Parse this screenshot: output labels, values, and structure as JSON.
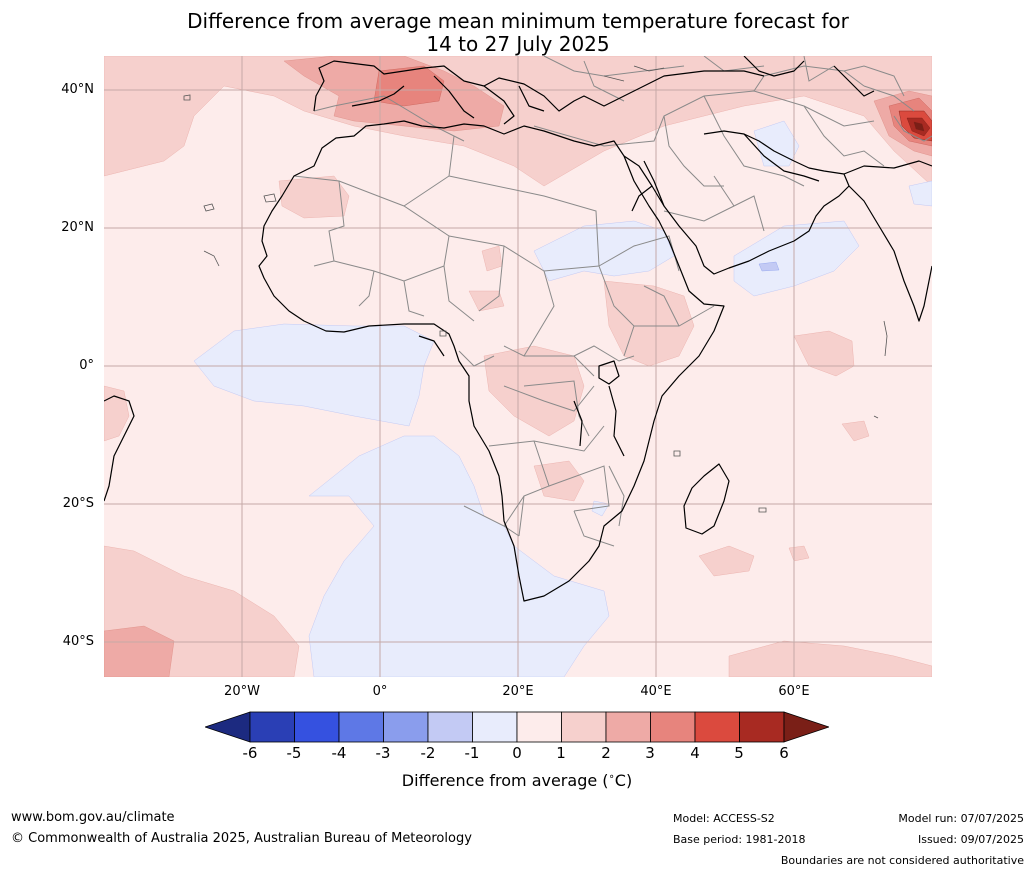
{
  "title_line1": "Difference from average mean minimum temperature forecast for",
  "title_line2": "14 to 27 July 2025",
  "latitude_labels": [
    "40°N",
    "20°N",
    "0°",
    "20°S",
    "40°S"
  ],
  "longitude_labels": [
    "20°W",
    "0°",
    "20°E",
    "40°E",
    "60°E"
  ],
  "colorbar": {
    "ticks": [
      "-6",
      "-5",
      "-4",
      "-3",
      "-2",
      "-1",
      "0",
      "1",
      "2",
      "3",
      "4",
      "5",
      "6"
    ],
    "colors": [
      "#1c2a80",
      "#2a3fb5",
      "#3551e0",
      "#5e78e6",
      "#8a9ded",
      "#c3caf4",
      "#e8ecfc",
      "#fdeceb",
      "#f6d0cd",
      "#eeaaa6",
      "#e7847d",
      "#db4a3e",
      "#a82a22",
      "#7a1f17"
    ],
    "label": "Difference from average (",
    "label_degree": "∘",
    "label_unit": "C)"
  },
  "footer": {
    "website": "www.bom.gov.au/climate",
    "copyright": "© Commonwealth of Australia 2025, Australian Bureau of Meteorology",
    "model": "Model: ACCESS-S2",
    "base_period": "Base period: 1981-2018",
    "model_run": "Model run: 07/07/2025",
    "issued": "Issued: 09/07/2025",
    "disclaimer": "Boundaries are not considered authoritative"
  }
}
